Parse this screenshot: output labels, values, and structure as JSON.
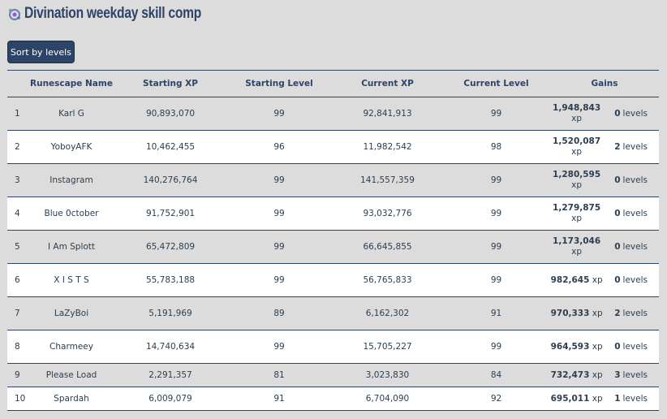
{
  "title": "Divination weekday skill comp",
  "icon": "divination-skill-icon",
  "sort_button": "Sort by levels",
  "columns": [
    "",
    "Runescape Name",
    "Starting XP",
    "Starting Level",
    "Current XP",
    "Current Level",
    "Gains"
  ],
  "xp_unit": "xp",
  "levels_unit": "levels",
  "rows": [
    {
      "rank": "1",
      "name": "Karl G",
      "start_xp": "90,893,070",
      "start_level": "99",
      "current_xp": "92,841,913",
      "current_level": "99",
      "gain_xp": "1,948,843",
      "gain_levels": "0"
    },
    {
      "rank": "2",
      "name": "YoboyAFK",
      "start_xp": "10,462,455",
      "start_level": "96",
      "current_xp": "11,982,542",
      "current_level": "98",
      "gain_xp": "1,520,087",
      "gain_levels": "2"
    },
    {
      "rank": "3",
      "name": "Instagram",
      "start_xp": "140,276,764",
      "start_level": "99",
      "current_xp": "141,557,359",
      "current_level": "99",
      "gain_xp": "1,280,595",
      "gain_levels": "0"
    },
    {
      "rank": "4",
      "name": "Blue 0ctober",
      "start_xp": "91,752,901",
      "start_level": "99",
      "current_xp": "93,032,776",
      "current_level": "99",
      "gain_xp": "1,279,875",
      "gain_levels": "0"
    },
    {
      "rank": "5",
      "name": "I Am Splott",
      "start_xp": "65,472,809",
      "start_level": "99",
      "current_xp": "66,645,855",
      "current_level": "99",
      "gain_xp": "1,173,046",
      "gain_levels": "0"
    },
    {
      "rank": "6",
      "name": "X I S T S",
      "start_xp": "55,783,188",
      "start_level": "99",
      "current_xp": "56,765,833",
      "current_level": "99",
      "gain_xp": "982,645",
      "gain_levels": "0"
    },
    {
      "rank": "7",
      "name": "LaZyBoi",
      "start_xp": "5,191,969",
      "start_level": "89",
      "current_xp": "6,162,302",
      "current_level": "91",
      "gain_xp": "970,333",
      "gain_levels": "2"
    },
    {
      "rank": "8",
      "name": "Charmeey",
      "start_xp": "14,740,634",
      "start_level": "99",
      "current_xp": "15,705,227",
      "current_level": "99",
      "gain_xp": "964,593",
      "gain_levels": "0"
    },
    {
      "rank": "9",
      "name": "Please Load",
      "start_xp": "2,291,357",
      "start_level": "81",
      "current_xp": "3,023,830",
      "current_level": "84",
      "gain_xp": "732,473",
      "gain_levels": "3"
    },
    {
      "rank": "10",
      "name": "Spardah",
      "start_xp": "6,009,079",
      "start_level": "91",
      "current_xp": "6,704,090",
      "current_level": "92",
      "gain_xp": "695,011",
      "gain_levels": "1"
    }
  ]
}
